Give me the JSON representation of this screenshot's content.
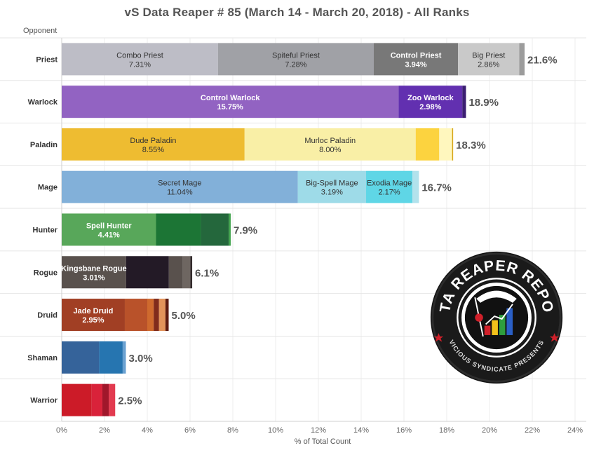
{
  "chart_data": {
    "type": "bar",
    "orientation": "horizontal",
    "stacked": true,
    "title": "vS Data Reaper # 85 (March 14 - March 20, 2018) - All Ranks",
    "ylabel": "Opponent",
    "xlabel": "% of Total Count",
    "xlim": [
      0,
      24
    ],
    "x_ticks": [
      "0%",
      "2%",
      "4%",
      "6%",
      "8%",
      "10%",
      "12%",
      "14%",
      "16%",
      "18%",
      "20%",
      "22%",
      "24%"
    ],
    "grid": true,
    "categories": [
      "Priest",
      "Warlock",
      "Paladin",
      "Mage",
      "Hunter",
      "Rogue",
      "Druid",
      "Shaman",
      "Warrior"
    ],
    "totals": [
      "21.6%",
      "18.9%",
      "18.3%",
      "16.7%",
      "7.9%",
      "6.1%",
      "5.0%",
      "3.0%",
      "2.5%"
    ],
    "rows": [
      {
        "class": "Priest",
        "segments": [
          {
            "name": "Combo Priest",
            "value": 7.31,
            "label": "7.31%",
            "color": "#bdbdc6"
          },
          {
            "name": "Spiteful Priest",
            "value": 7.28,
            "label": "7.28%",
            "color": "#a0a1a6"
          },
          {
            "name": "Control Priest",
            "value": 3.94,
            "label": "3.94%",
            "color": "#787878"
          },
          {
            "name": "Big Priest",
            "value": 2.86,
            "label": "2.86%",
            "color": "#c9c9c9"
          },
          {
            "name": "",
            "value": 0.25,
            "label": "",
            "color": "#9c9c9c"
          }
        ]
      },
      {
        "class": "Warlock",
        "segments": [
          {
            "name": "Control Warlock",
            "value": 15.75,
            "label": "15.75%",
            "color": "#9263c2"
          },
          {
            "name": "Zoo Warlock",
            "value": 2.98,
            "label": "2.98%",
            "color": "#6230b0"
          },
          {
            "name": "",
            "value": 0.17,
            "label": "",
            "color": "#3b1e72"
          }
        ]
      },
      {
        "class": "Paladin",
        "segments": [
          {
            "name": "Dude Paladin",
            "value": 8.55,
            "label": "8.55%",
            "color": "#eebc31"
          },
          {
            "name": "Murloc Paladin",
            "value": 8.0,
            "label": "8.00%",
            "color": "#f9efa6"
          },
          {
            "name": "",
            "value": 1.1,
            "label": "",
            "color": "#fcd33f"
          },
          {
            "name": "",
            "value": 0.6,
            "label": "",
            "color": "#fff7be"
          },
          {
            "name": "",
            "value": 0.05,
            "label": "",
            "color": "#d6a517"
          }
        ]
      },
      {
        "class": "Mage",
        "segments": [
          {
            "name": "Secret Mage",
            "value": 11.04,
            "label": "11.04%",
            "color": "#82b0d9"
          },
          {
            "name": "Big-Spell Mage",
            "value": 3.19,
            "label": "3.19%",
            "color": "#9edbe8"
          },
          {
            "name": "Exodia Mage",
            "value": 2.17,
            "label": "2.17%",
            "color": "#5fd6e6"
          },
          {
            "name": "",
            "value": 0.3,
            "label": "",
            "color": "#b2e2ec"
          }
        ]
      },
      {
        "class": "Hunter",
        "segments": [
          {
            "name": "Spell Hunter",
            "value": 4.41,
            "label": "4.41%",
            "color": "#58a75a"
          },
          {
            "name": "",
            "value": 2.1,
            "label": "",
            "color": "#1c7535"
          },
          {
            "name": "",
            "value": 1.3,
            "label": "",
            "color": "#24673c"
          },
          {
            "name": "",
            "value": 0.09,
            "label": "",
            "color": "#3ea24a"
          }
        ]
      },
      {
        "class": "Rogue",
        "segments": [
          {
            "name": "Kingsbane Rogue",
            "value": 3.01,
            "label": "3.01%",
            "color": "#59514d"
          },
          {
            "name": "",
            "value": 2.0,
            "label": "",
            "color": "#231a26"
          },
          {
            "name": "",
            "value": 0.65,
            "label": "",
            "color": "#59514d"
          },
          {
            "name": "",
            "value": 0.35,
            "label": "",
            "color": "#6e6661"
          },
          {
            "name": "",
            "value": 0.09,
            "label": "",
            "color": "#332b2c"
          }
        ]
      },
      {
        "class": "Druid",
        "segments": [
          {
            "name": "Jade Druid",
            "value": 2.95,
            "label": "2.95%",
            "color": "#a13f24"
          },
          {
            "name": "",
            "value": 1.05,
            "label": "",
            "color": "#b9522a"
          },
          {
            "name": "",
            "value": 0.3,
            "label": "",
            "color": "#cf6a2e"
          },
          {
            "name": "",
            "value": 0.25,
            "label": "",
            "color": "#802b1b"
          },
          {
            "name": "",
            "value": 0.3,
            "label": "",
            "color": "#e2935a"
          },
          {
            "name": "",
            "value": 0.15,
            "label": "",
            "color": "#5c1a10"
          }
        ]
      },
      {
        "class": "Shaman",
        "segments": [
          {
            "name": "",
            "value": 1.75,
            "label": "",
            "color": "#35639a"
          },
          {
            "name": "",
            "value": 1.1,
            "label": "",
            "color": "#2675b0"
          },
          {
            "name": "",
            "value": 0.15,
            "label": "",
            "color": "#6aa1d1"
          }
        ]
      },
      {
        "class": "Warrior",
        "segments": [
          {
            "name": "",
            "value": 1.4,
            "label": "",
            "color": "#cc1b28"
          },
          {
            "name": "",
            "value": 0.5,
            "label": "",
            "color": "#d9223a"
          },
          {
            "name": "",
            "value": 0.3,
            "label": "",
            "color": "#a0172b"
          },
          {
            "name": "",
            "value": 0.3,
            "label": "",
            "color": "#e23a4f"
          }
        ]
      }
    ]
  },
  "badge": {
    "top_text": "DATA REAPER REPORT",
    "bottom_text": "VICIOUS SYNDICATE PRESENTS"
  }
}
